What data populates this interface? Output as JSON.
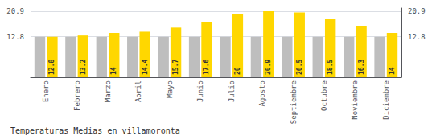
{
  "chart_data": {
    "type": "bar",
    "title": "Temperaturas Medias en villamoronta",
    "categories": [
      "Enero",
      "Febrero",
      "Marzo",
      "Abril",
      "Mayo",
      "Junio",
      "Julio",
      "Agosto",
      "Septiembre",
      "Octubre",
      "Noviembre",
      "Diciembre"
    ],
    "series": [
      {
        "color": "#BEBEBE",
        "values": [
          12.8,
          12.8,
          12.8,
          12.8,
          12.8,
          12.8,
          12.8,
          12.8,
          12.8,
          12.8,
          12.8,
          12.8
        ]
      },
      {
        "color": "#FFD700",
        "values": [
          12.8,
          13.2,
          14.0,
          14.4,
          15.7,
          17.6,
          20.0,
          20.9,
          20.5,
          18.5,
          16.3,
          14.0
        ],
        "data_labels": true
      }
    ],
    "ylim": [
      0,
      21.9
    ],
    "yticks": [
      12.8,
      20.9
    ],
    "y2lim": [
      0,
      21.9
    ],
    "y2ticks": [
      12.8,
      20.9
    ],
    "grid": true
  }
}
